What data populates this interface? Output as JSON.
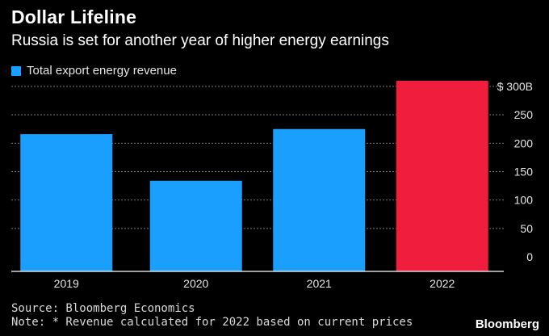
{
  "title": "Dollar Lifeline",
  "subtitle": "Russia is set for another year of higher energy earnings",
  "legend": {
    "label": "Total export energy revenue"
  },
  "footer": {
    "source": "Source: Bloomberg Economics",
    "note": "Note: * Revenue calculated for 2022 based on current prices",
    "brand": "Bloomberg"
  },
  "colors": {
    "bar": "#1a9fff",
    "highlight": "#f01e3c",
    "grid": "#7a7a7a",
    "axis": "#ffffff",
    "background": "#000000"
  },
  "chart_data": {
    "type": "bar",
    "title": "Dollar Lifeline",
    "subtitle": "Russia is set for another year of higher energy earnings",
    "categories": [
      "2019",
      "2020",
      "2021",
      "2022"
    ],
    "series": [
      {
        "name": "Total export energy revenue",
        "values": [
          216,
          134,
          225,
          310
        ]
      }
    ],
    "highlight_category": "2022",
    "ylim": [
      0,
      300
    ],
    "yticks": [
      0,
      50,
      100,
      150,
      200,
      250,
      300
    ],
    "ytick_labels": [
      "0",
      "50",
      "100",
      "150",
      "200",
      "250",
      "$ 300B"
    ],
    "y_axis_position": "right",
    "grid": true
  }
}
